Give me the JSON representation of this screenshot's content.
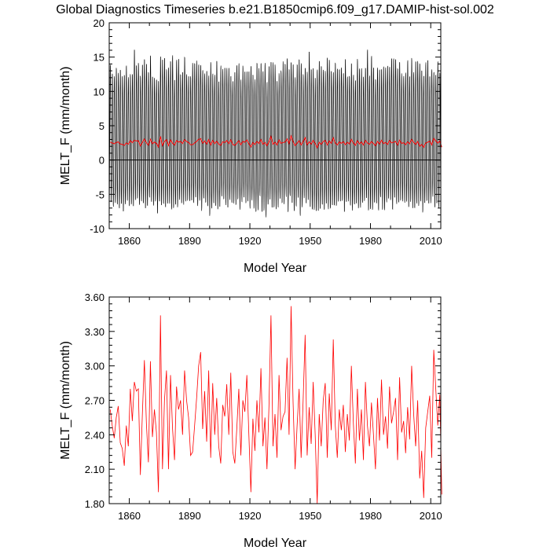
{
  "figure": {
    "title": "Global Diagnostics Timeseries b.e21.B1850cmip6.f09_g17.DAMIP-hist-sol.002"
  },
  "chart_data": [
    {
      "type": "line",
      "xlabel": "Model Year",
      "ylabel": "MELT_F (mm/month)",
      "xlim": [
        1850,
        2015
      ],
      "ylim": [
        -10,
        20
      ],
      "x_ticks": [
        1860,
        1890,
        1920,
        1950,
        1980,
        2010
      ],
      "x_tick_labels": [
        "1860",
        "1890",
        "1920",
        "1950",
        "1980",
        "2010"
      ],
      "y_ticks": [
        -10,
        -5,
        0,
        5,
        10,
        15,
        20
      ],
      "y_tick_labels": [
        "-10",
        "-5",
        "0",
        "5",
        "10",
        "15",
        "20"
      ],
      "reference_line": 0,
      "series": [
        {
          "color": "#000000",
          "monthly_envelope": {
            "start_year": 1850,
            "end_year": 2014,
            "typical_max": 13.5,
            "typical_min": -6.8,
            "peak_max": 16.6,
            "peak_min": -8.4
          }
        },
        {
          "color": "#ff0000",
          "annual_mean_ref": "chart_data.1.series.0.values"
        }
      ]
    },
    {
      "type": "line",
      "xlabel": "Model Year",
      "ylabel": "MELT_F (mm/month)",
      "xlim": [
        1850,
        2015
      ],
      "ylim": [
        1.8,
        3.6
      ],
      "x_ticks": [
        1860,
        1890,
        1920,
        1950,
        1980,
        2010
      ],
      "x_tick_labels": [
        "1860",
        "1890",
        "1920",
        "1950",
        "1980",
        "2010"
      ],
      "y_ticks": [
        1.8,
        2.1,
        2.4,
        2.7,
        3.0,
        3.3,
        3.6
      ],
      "y_tick_labels": [
        "1.80",
        "2.10",
        "2.40",
        "2.70",
        "3.00",
        "3.30",
        "3.60"
      ],
      "series": [
        {
          "color": "#ff0000",
          "x_start": 1850,
          "x_step": 1,
          "values": [
            2.62,
            2.48,
            2.37,
            2.55,
            2.65,
            2.33,
            2.28,
            2.13,
            2.48,
            2.3,
            2.8,
            2.52,
            2.86,
            2.78,
            2.8,
            2.05,
            2.58,
            3.05,
            2.5,
            2.16,
            3.04,
            2.38,
            2.62,
            2.42,
            1.9,
            3.44,
            2.1,
            2.7,
            2.96,
            2.1,
            2.92,
            2.46,
            2.18,
            2.82,
            2.62,
            2.7,
            2.4,
            2.96,
            2.7,
            2.55,
            2.22,
            2.25,
            2.48,
            2.72,
            3.0,
            3.12,
            2.45,
            2.78,
            2.34,
            2.96,
            2.2,
            2.85,
            2.4,
            2.72,
            2.3,
            2.15,
            2.66,
            2.56,
            2.84,
            2.4,
            2.94,
            2.25,
            2.15,
            2.46,
            2.8,
            2.22,
            2.7,
            2.6,
            2.92,
            2.4,
            1.9,
            2.54,
            2.26,
            2.7,
            2.42,
            2.98,
            2.3,
            2.55,
            2.1,
            2.65,
            3.44,
            2.3,
            2.58,
            2.2,
            2.92,
            2.44,
            2.56,
            2.6,
            3.07,
            2.4,
            3.52,
            2.68,
            2.1,
            2.48,
            2.8,
            2.2,
            2.7,
            3.27,
            2.22,
            2.64,
            2.32,
            2.86,
            2.4,
            1.8,
            2.58,
            2.3,
            2.7,
            2.85,
            2.2,
            2.76,
            2.44,
            3.23,
            2.48,
            2.2,
            2.62,
            2.44,
            2.66,
            2.25,
            2.58,
            2.35,
            3.0,
            2.5,
            2.15,
            2.8,
            2.35,
            2.62,
            2.18,
            2.86,
            2.48,
            2.3,
            2.68,
            2.4,
            2.1,
            2.72,
            2.35,
            2.88,
            2.4,
            2.56,
            2.28,
            2.82,
            2.5,
            2.6,
            2.72,
            2.18,
            2.9,
            2.42,
            2.52,
            2.24,
            2.64,
            2.36,
            3.0,
            2.58,
            2.3,
            2.7,
            2.02,
            2.26,
            1.85,
            2.46,
            2.6,
            2.74,
            2.2,
            3.14,
            2.8,
            2.48,
            2.75,
            1.88
          ]
        }
      ]
    }
  ]
}
